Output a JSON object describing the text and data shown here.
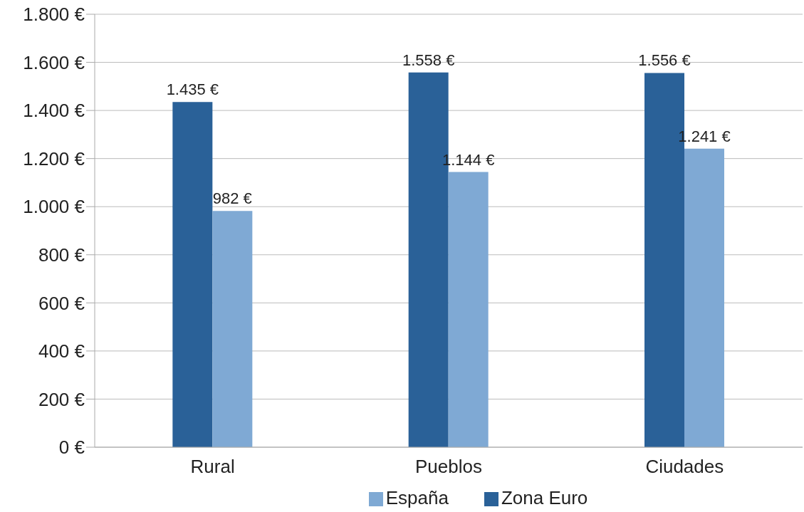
{
  "chart_data": {
    "type": "bar",
    "categories": [
      "Rural",
      "Pueblos",
      "Ciudades"
    ],
    "series": [
      {
        "name": "Zona Euro",
        "color": "#2a6198",
        "values": [
          1435,
          1558,
          1556
        ],
        "value_labels": [
          "1.435 €",
          "1.558 €",
          "1.556 €"
        ]
      },
      {
        "name": "España",
        "color": "#7fa9d4",
        "values": [
          982,
          1144,
          1241
        ],
        "value_labels": [
          "982 €",
          "1.144 €",
          "1.241 €"
        ]
      }
    ],
    "ylim": [
      0,
      1800
    ],
    "yticks": [
      {
        "value": 0,
        "label": "0 €"
      },
      {
        "value": 200,
        "label": "200 €"
      },
      {
        "value": 400,
        "label": "400 €"
      },
      {
        "value": 600,
        "label": "600 €"
      },
      {
        "value": 800,
        "label": "800 €"
      },
      {
        "value": 1000,
        "label": "1.000 €"
      },
      {
        "value": 1200,
        "label": "1.200 €"
      },
      {
        "value": 1400,
        "label": "1.400 €"
      },
      {
        "value": 1600,
        "label": "1.600 €"
      },
      {
        "value": 1800,
        "label": "1.800 €"
      }
    ],
    "grid": "y",
    "legend": "bottom"
  }
}
